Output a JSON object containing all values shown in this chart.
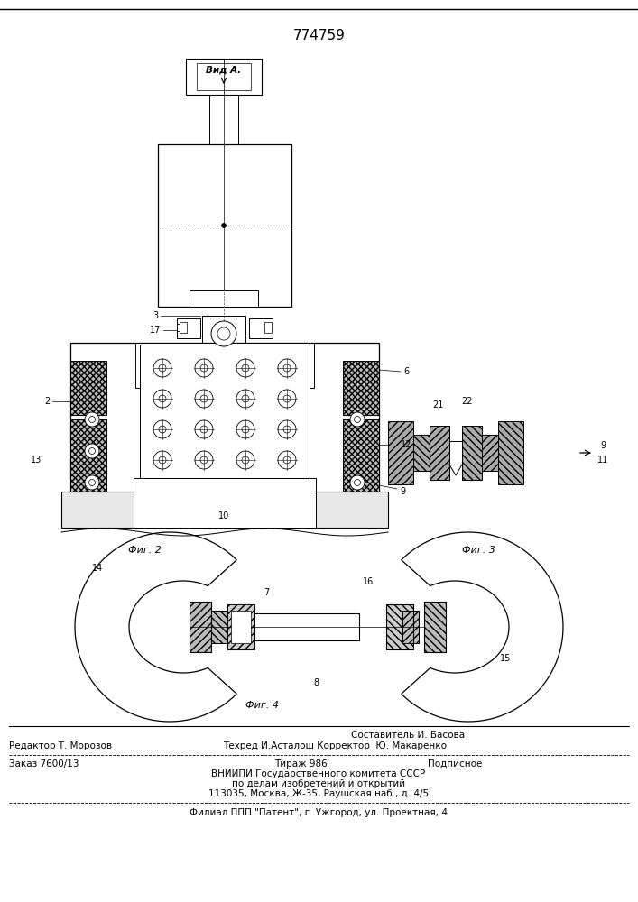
{
  "patent_number": "774759",
  "bg": "#ffffff",
  "lc": "#000000",
  "fig_width": 7.07,
  "fig_height": 10.0,
  "dpi": 100,
  "footer_composer": "Составитель И. Басова",
  "footer_editor": "Редактор Т. Морозов",
  "footer_techred": "Техред И.Асталош Корректор  Ю. Макаренко",
  "footer_order": "Заказ 7600/13",
  "footer_tirazh": "Тираж 986",
  "footer_podpis": "Подписное",
  "footer_vniip1": "ВНИИПИ Государственного комитета СССР",
  "footer_vniip2": "по делам изобретений и открытий",
  "footer_addr": "113035, Москва, Ж-35, Раушская наб., д. 4/5",
  "footer_filial": "Филиал ППП \"Патент\", г. Ужгород, ул. Проектная, 4"
}
